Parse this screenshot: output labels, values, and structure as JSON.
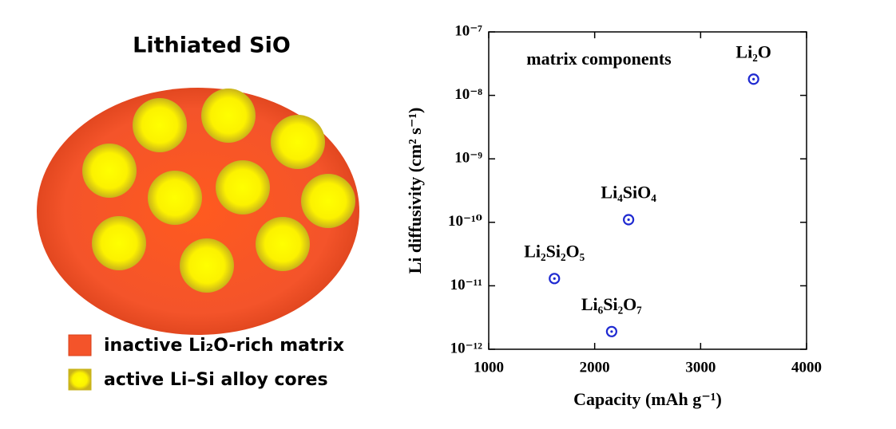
{
  "diagram": {
    "title": "Lithiated SiO",
    "legend": [
      "inactive Li₂O-rich matrix",
      "active Li–Si alloy cores"
    ]
  },
  "chart_data": {
    "type": "scatter",
    "annotation": "matrix components",
    "x_label": "Capacity (mAh g⁻¹)",
    "y_label": "Li diffusivity (cm² s⁻¹)",
    "yscale": "log",
    "xlim": [
      1000,
      4000
    ],
    "xticks": [
      1000,
      2000,
      3000,
      4000
    ],
    "ylim": [
      1e-12,
      1e-07
    ],
    "yticks": [
      {
        "value": 1e-12,
        "label": "10⁻¹²"
      },
      {
        "value": 1e-11,
        "label": "10⁻¹¹"
      },
      {
        "value": 1e-10,
        "label": "10⁻¹⁰"
      },
      {
        "value": 1e-09,
        "label": "10⁻⁹"
      },
      {
        "value": 1e-08,
        "label": "10⁻⁸"
      },
      {
        "value": 1e-07,
        "label": "10⁻⁷"
      }
    ],
    "series": [
      {
        "color": "#1f2ad1",
        "labels": [
          "Li₂O",
          "Li₄SiO₄",
          "Li₂Si₂O₅",
          "Li₆Si₂O₇"
        ],
        "x": [
          3500,
          2320,
          1620,
          2160
        ],
        "values": [
          1.8e-08,
          1.1e-10,
          1.3e-11,
          1.9e-12
        ]
      }
    ]
  }
}
